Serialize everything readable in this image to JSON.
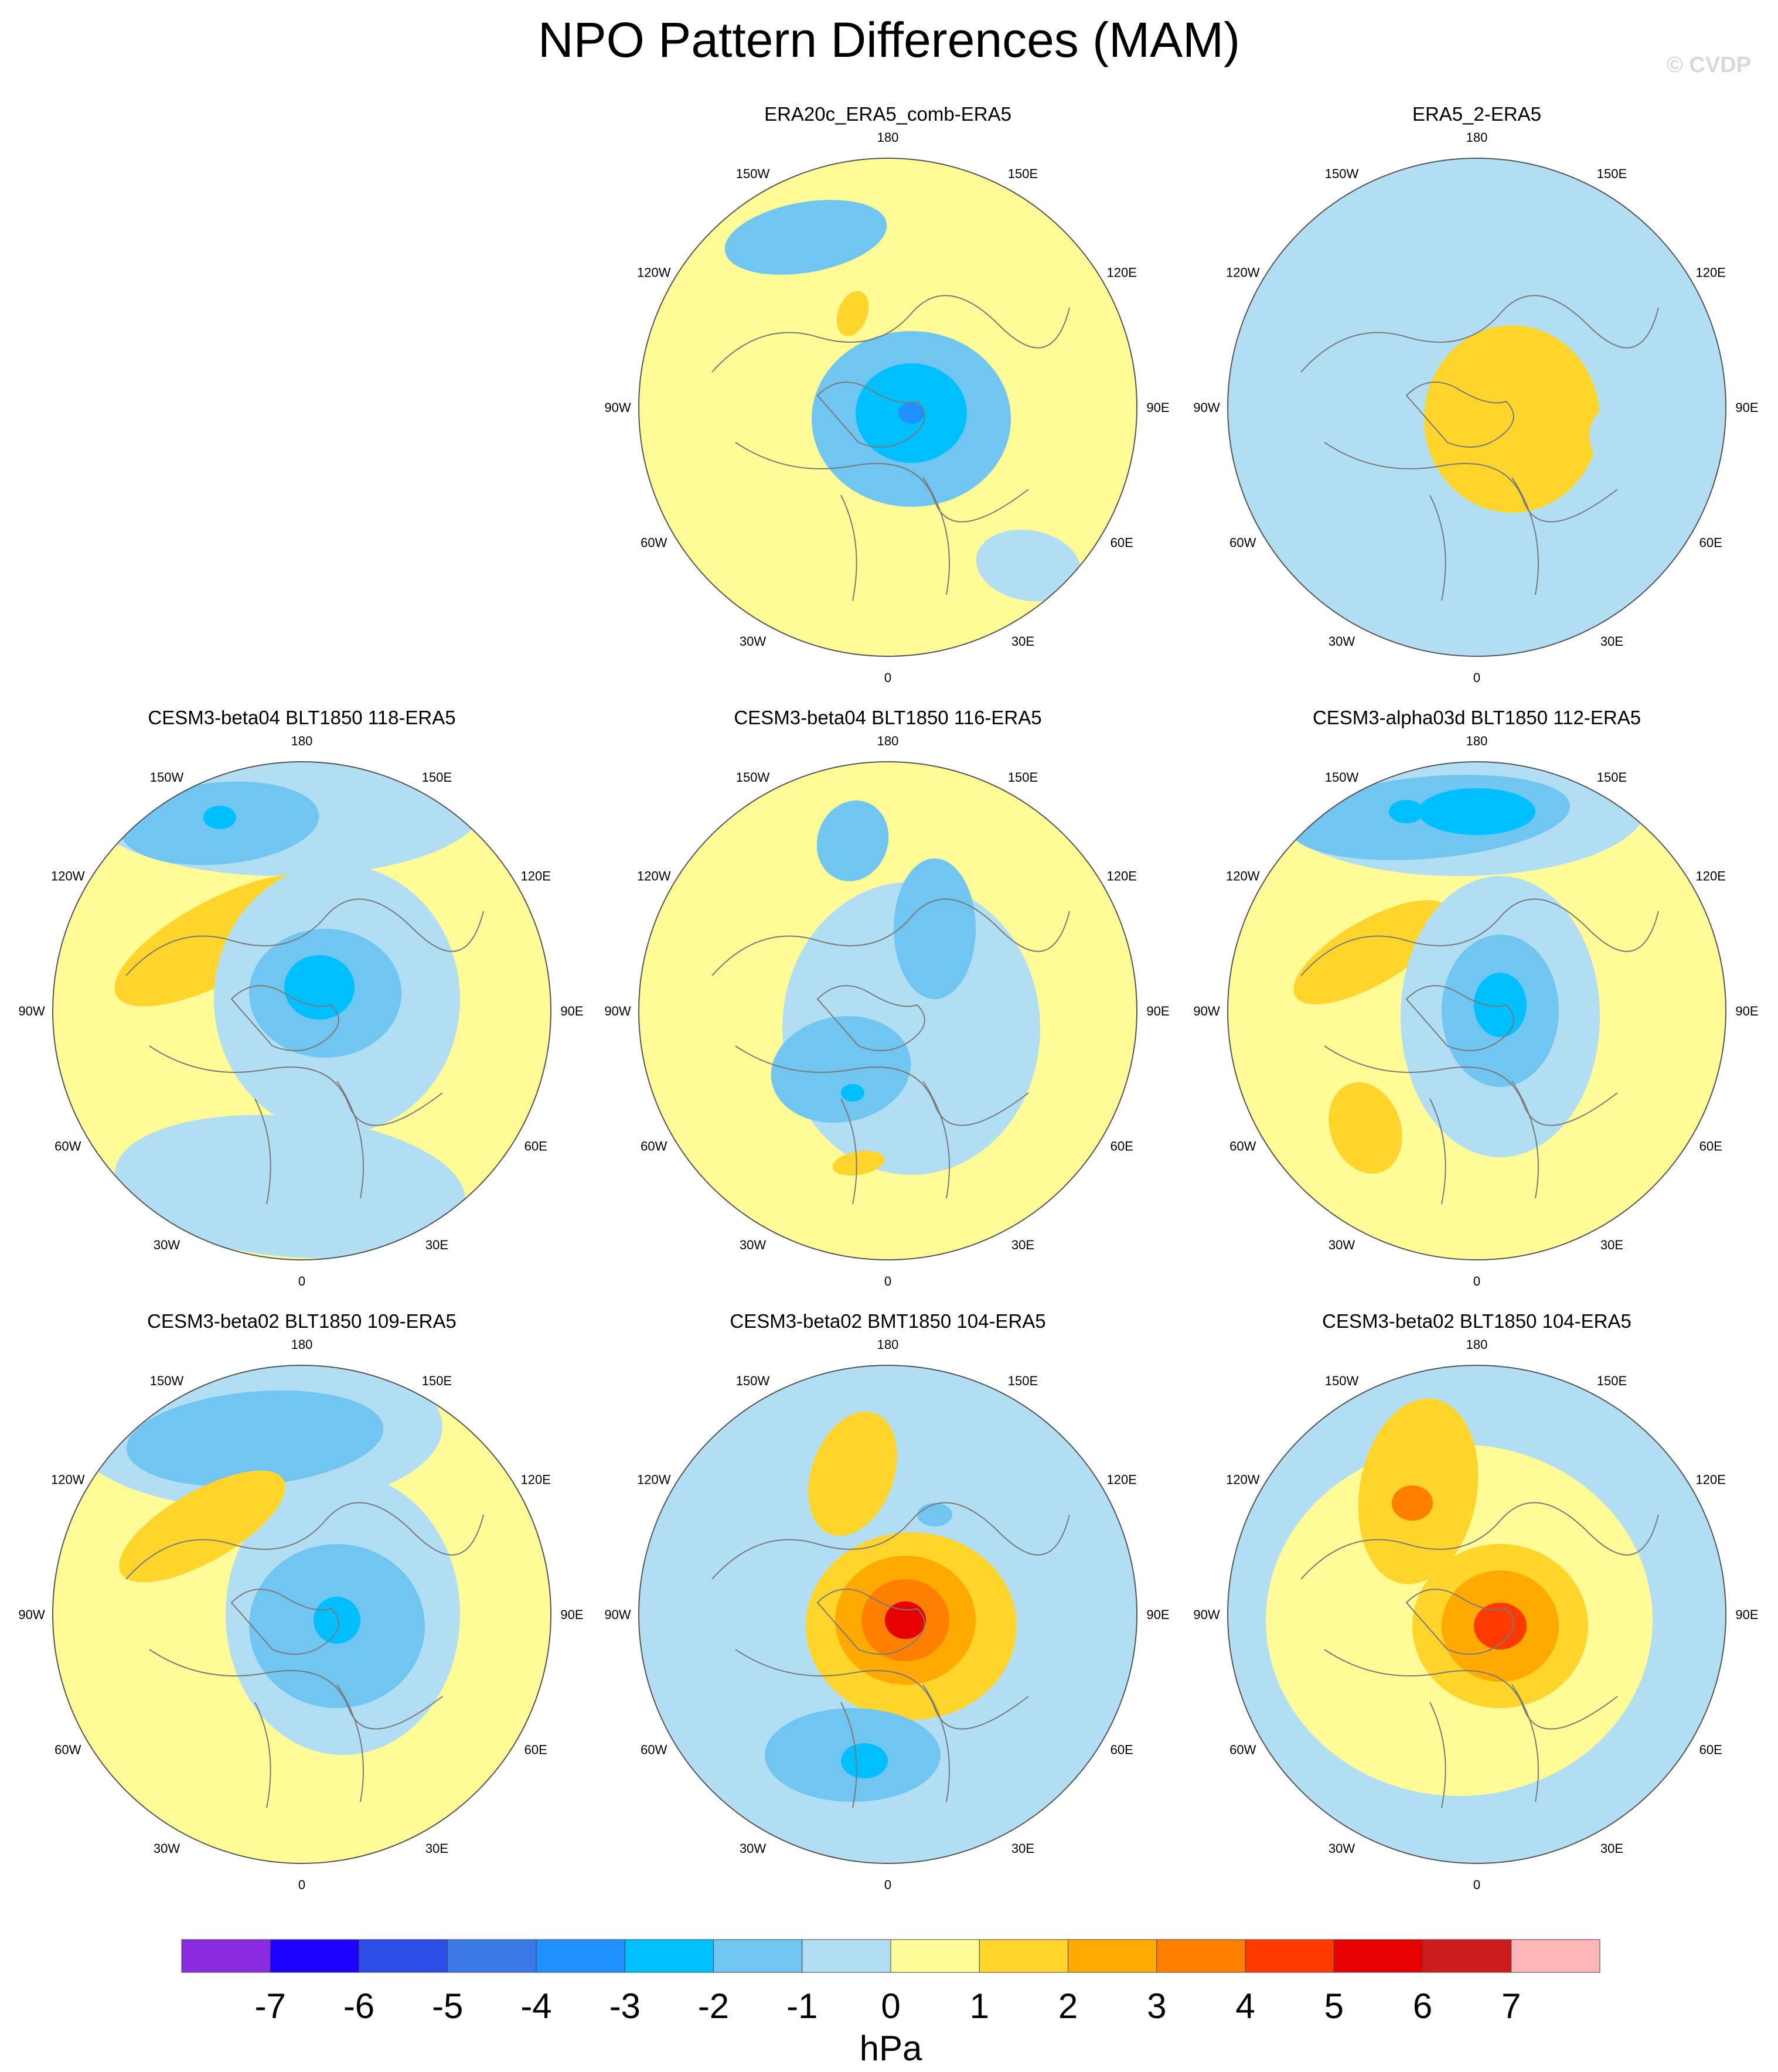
{
  "title": "NPO Pattern Differences (MAM)",
  "watermark": "© CVDP",
  "longitude_labels": [
    "180",
    "150E",
    "120E",
    "90E",
    "60E",
    "30E",
    "0",
    "30W",
    "60W",
    "90W",
    "120W",
    "150W"
  ],
  "panels": [
    {
      "title": "ERA20c_ERA5_comb-ERA5",
      "background": "#fffb96"
    },
    {
      "title": "ERA5_2-ERA5",
      "background": "#b2def4"
    },
    {
      "title": "CESM3-beta04 BLT1850 118-ERA5",
      "background": "#fffb96"
    },
    {
      "title": "CESM3-beta04 BLT1850 116-ERA5",
      "background": "#fffb96"
    },
    {
      "title": "CESM3-alpha03d BLT1850 112-ERA5",
      "background": "#fffb96"
    },
    {
      "title": "CESM3-beta02 BLT1850 109-ERA5",
      "background": "#fffb96"
    },
    {
      "title": "CESM3-beta02 BMT1850 104-ERA5",
      "background": "#b2def4"
    },
    {
      "title": "CESM3-beta02 BLT1850 104-ERA5",
      "background": "#b2def4"
    }
  ],
  "colorbar": {
    "units": "hPa",
    "labels": [
      "-7",
      "-6",
      "-5",
      "-4",
      "-3",
      "-2",
      "-1",
      "0",
      "1",
      "2",
      "3",
      "4",
      "5",
      "6",
      "7"
    ],
    "colors": [
      "#8a2be2",
      "#1e00ff",
      "#2a4ee6",
      "#3a7ae8",
      "#1e90ff",
      "#00bfff",
      "#70c6f0",
      "#b2def4",
      "#fffb96",
      "#ffd52b",
      "#ffaa00",
      "#ff7f00",
      "#ff3a00",
      "#e60000",
      "#cc1c1c",
      "#ffb6b9"
    ]
  }
}
